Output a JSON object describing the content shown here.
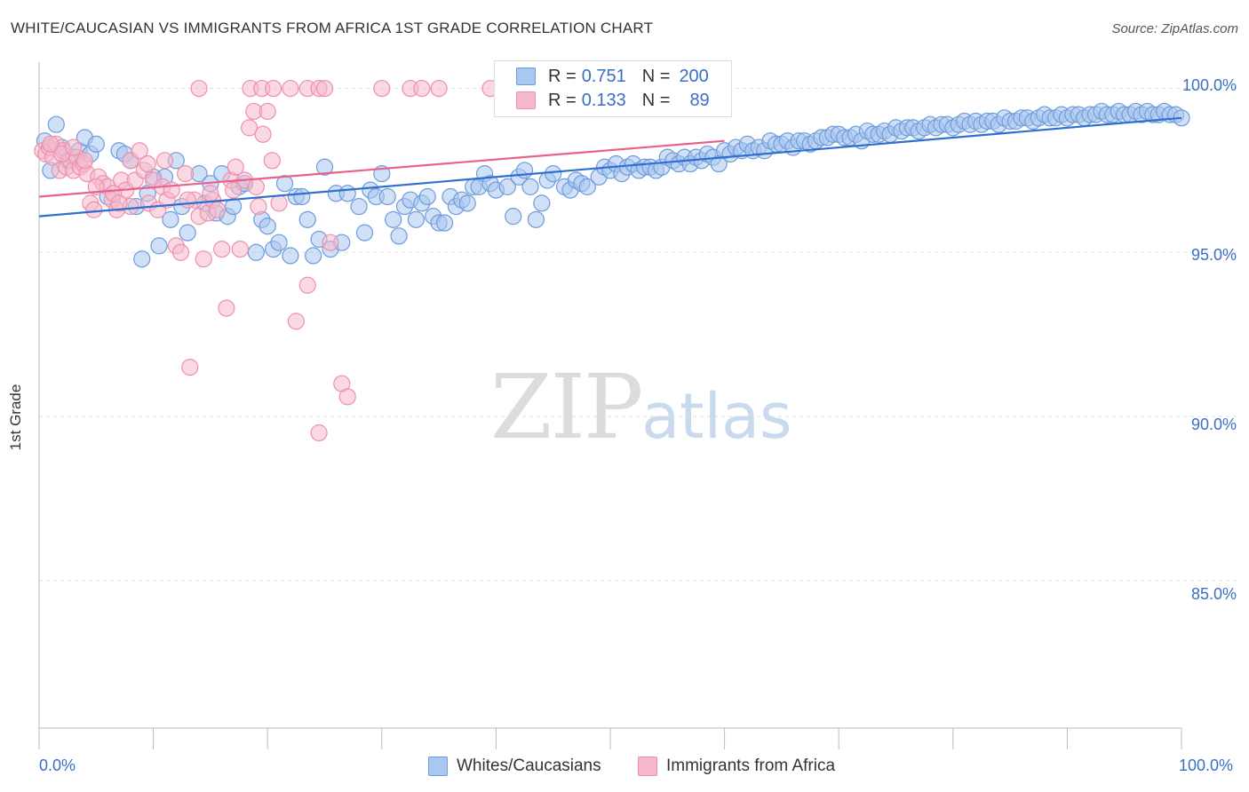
{
  "header": {
    "title": "WHITE/CAUCASIAN VS IMMIGRANTS FROM AFRICA 1ST GRADE CORRELATION CHART",
    "source": "Source: ZipAtlas.com"
  },
  "watermark": {
    "zip": "ZIP",
    "atlas": "atlas"
  },
  "legend_top": {
    "rows": [
      {
        "r_label": "R = ",
        "r_value": "0.751",
        "n_label": "N = ",
        "n_value": "200"
      },
      {
        "r_label": "R = ",
        "r_value": "0.133",
        "n_label": "N = ",
        "n_value": "89"
      }
    ]
  },
  "legend_bottom": [
    "Whites/Caucasians",
    "Immigrants from Africa"
  ],
  "colors": {
    "blue_fill": "#a9c7ef",
    "blue_stroke": "#6d9bdc",
    "blue_line": "#2f6fd0",
    "pink_fill": "#f6b9cc",
    "pink_stroke": "#ee8fae",
    "pink_line": "#e8628c",
    "tick_text": "#3a6fc4",
    "grid": "#dddddd"
  },
  "chart_data": {
    "type": "scatter",
    "title": "WHITE/CAUCASIAN VS IMMIGRANTS FROM AFRICA 1ST GRADE CORRELATION CHART",
    "xlabel": "",
    "ylabel": "1st Grade",
    "x_tick_labels": [
      "0.0%",
      "100.0%"
    ],
    "y_tick_labels": [
      "100.0%",
      "95.0%",
      "90.0%",
      "85.0%"
    ],
    "y_tick_values": [
      100,
      95,
      90,
      85
    ],
    "xlim": [
      0,
      100
    ],
    "ylim": [
      80.5,
      100.8
    ],
    "grid": true,
    "series": [
      {
        "name": "Whites/Caucasians",
        "r": 0.751,
        "n": 200,
        "trend": {
          "x": [
            0,
            100
          ],
          "y": [
            96.1,
            99.1
          ]
        },
        "points": [
          [
            0.5,
            98.4
          ],
          [
            1,
            97.5
          ],
          [
            1.5,
            98.9
          ],
          [
            2,
            98.2
          ],
          [
            2.5,
            97.8
          ],
          [
            3,
            97.9
          ],
          [
            3.5,
            98.1
          ],
          [
            4,
            98.5
          ],
          [
            4.5,
            98.0
          ],
          [
            5,
            98.3
          ],
          [
            6,
            96.7
          ],
          [
            7,
            98.1
          ],
          [
            7.5,
            98.0
          ],
          [
            8,
            97.8
          ],
          [
            8.5,
            96.4
          ],
          [
            9,
            94.8
          ],
          [
            9.5,
            96.8
          ],
          [
            10,
            97.3
          ],
          [
            10.5,
            95.2
          ],
          [
            11,
            97.3
          ],
          [
            11.5,
            96.0
          ],
          [
            12,
            97.8
          ],
          [
            12.5,
            96.4
          ],
          [
            13,
            95.6
          ],
          [
            14,
            97.4
          ],
          [
            14.5,
            96.5
          ],
          [
            15,
            97.1
          ],
          [
            15.5,
            96.2
          ],
          [
            16,
            97.4
          ],
          [
            16.5,
            96.1
          ],
          [
            17,
            96.4
          ],
          [
            17.5,
            97.0
          ],
          [
            18,
            97.1
          ],
          [
            19,
            95.0
          ],
          [
            19.5,
            96.0
          ],
          [
            20,
            95.8
          ],
          [
            20.5,
            95.1
          ],
          [
            21,
            95.3
          ],
          [
            21.5,
            97.1
          ],
          [
            22,
            94.9
          ],
          [
            22.5,
            96.7
          ],
          [
            23,
            96.7
          ],
          [
            23.5,
            96.0
          ],
          [
            24,
            94.9
          ],
          [
            24.5,
            95.4
          ],
          [
            25,
            97.6
          ],
          [
            25.5,
            95.1
          ],
          [
            26,
            96.8
          ],
          [
            26.5,
            95.3
          ],
          [
            27,
            96.8
          ],
          [
            28,
            96.4
          ],
          [
            28.5,
            95.6
          ],
          [
            29,
            96.9
          ],
          [
            29.5,
            96.7
          ],
          [
            30,
            97.4
          ],
          [
            30.5,
            96.7
          ],
          [
            31,
            96.0
          ],
          [
            31.5,
            95.5
          ],
          [
            32,
            96.4
          ],
          [
            32.5,
            96.6
          ],
          [
            33,
            96.0
          ],
          [
            33.5,
            96.5
          ],
          [
            34,
            96.7
          ],
          [
            34.5,
            96.1
          ],
          [
            35,
            95.9
          ],
          [
            35.5,
            95.9
          ],
          [
            36,
            96.7
          ],
          [
            36.5,
            96.4
          ],
          [
            37,
            96.6
          ],
          [
            37.5,
            96.5
          ],
          [
            38,
            97.0
          ],
          [
            38.5,
            97.0
          ],
          [
            39,
            97.4
          ],
          [
            39.5,
            97.1
          ],
          [
            40,
            96.9
          ],
          [
            41,
            97.0
          ],
          [
            41.5,
            96.1
          ],
          [
            42,
            97.3
          ],
          [
            42.5,
            97.5
          ],
          [
            43,
            97.0
          ],
          [
            43.5,
            96.0
          ],
          [
            44,
            96.5
          ],
          [
            44.5,
            97.2
          ],
          [
            45,
            97.4
          ],
          [
            46,
            97.0
          ],
          [
            46.5,
            96.9
          ],
          [
            47,
            97.2
          ],
          [
            47.5,
            97.1
          ],
          [
            48,
            97.0
          ],
          [
            49,
            97.3
          ],
          [
            49.5,
            97.6
          ],
          [
            50,
            97.5
          ],
          [
            50.5,
            97.7
          ],
          [
            51,
            97.4
          ],
          [
            51.5,
            97.6
          ],
          [
            52,
            97.7
          ],
          [
            52.5,
            97.5
          ],
          [
            53,
            97.6
          ],
          [
            53.5,
            97.6
          ],
          [
            54,
            97.5
          ],
          [
            54.5,
            97.6
          ],
          [
            55,
            97.9
          ],
          [
            55.5,
            97.8
          ],
          [
            56,
            97.7
          ],
          [
            56.5,
            97.9
          ],
          [
            57,
            97.7
          ],
          [
            57.5,
            97.9
          ],
          [
            58,
            97.8
          ],
          [
            58.5,
            98.0
          ],
          [
            59,
            97.9
          ],
          [
            59.5,
            97.7
          ],
          [
            60,
            98.1
          ],
          [
            60.5,
            98.0
          ],
          [
            61,
            98.2
          ],
          [
            61.5,
            98.1
          ],
          [
            62,
            98.3
          ],
          [
            62.5,
            98.1
          ],
          [
            63,
            98.2
          ],
          [
            63.5,
            98.1
          ],
          [
            64,
            98.4
          ],
          [
            64.5,
            98.3
          ],
          [
            65,
            98.3
          ],
          [
            65.5,
            98.4
          ],
          [
            66,
            98.2
          ],
          [
            66.5,
            98.4
          ],
          [
            67,
            98.4
          ],
          [
            67.5,
            98.3
          ],
          [
            68,
            98.4
          ],
          [
            68.5,
            98.5
          ],
          [
            69,
            98.5
          ],
          [
            69.5,
            98.6
          ],
          [
            70,
            98.6
          ],
          [
            70.5,
            98.5
          ],
          [
            71,
            98.5
          ],
          [
            71.5,
            98.6
          ],
          [
            72,
            98.4
          ],
          [
            72.5,
            98.7
          ],
          [
            73,
            98.6
          ],
          [
            73.5,
            98.6
          ],
          [
            74,
            98.7
          ],
          [
            74.5,
            98.6
          ],
          [
            75,
            98.8
          ],
          [
            75.5,
            98.7
          ],
          [
            76,
            98.8
          ],
          [
            76.5,
            98.8
          ],
          [
            77,
            98.7
          ],
          [
            77.5,
            98.8
          ],
          [
            78,
            98.9
          ],
          [
            78.5,
            98.8
          ],
          [
            79,
            98.9
          ],
          [
            79.5,
            98.9
          ],
          [
            80,
            98.8
          ],
          [
            80.5,
            98.9
          ],
          [
            81,
            99.0
          ],
          [
            81.5,
            98.9
          ],
          [
            82,
            99.0
          ],
          [
            82.5,
            98.9
          ],
          [
            83,
            99.0
          ],
          [
            83.5,
            99.0
          ],
          [
            84,
            98.9
          ],
          [
            84.5,
            99.1
          ],
          [
            85,
            99.0
          ],
          [
            85.5,
            99.0
          ],
          [
            86,
            99.1
          ],
          [
            86.5,
            99.1
          ],
          [
            87,
            99.0
          ],
          [
            87.5,
            99.1
          ],
          [
            88,
            99.2
          ],
          [
            88.5,
            99.1
          ],
          [
            89,
            99.1
          ],
          [
            89.5,
            99.2
          ],
          [
            90,
            99.1
          ],
          [
            90.5,
            99.2
          ],
          [
            91,
            99.2
          ],
          [
            91.5,
            99.1
          ],
          [
            92,
            99.2
          ],
          [
            92.5,
            99.2
          ],
          [
            93,
            99.3
          ],
          [
            93.5,
            99.2
          ],
          [
            94,
            99.2
          ],
          [
            94.5,
            99.3
          ],
          [
            95,
            99.2
          ],
          [
            95.5,
            99.2
          ],
          [
            96,
            99.3
          ],
          [
            96.5,
            99.2
          ],
          [
            97,
            99.3
          ],
          [
            97.5,
            99.2
          ],
          [
            98,
            99.2
          ],
          [
            98.5,
            99.3
          ],
          [
            99,
            99.2
          ],
          [
            99.5,
            99.2
          ],
          [
            100,
            99.1
          ]
        ]
      },
      {
        "name": "Immigrants from Africa",
        "r": 0.133,
        "n": 89,
        "trend": {
          "x": [
            0,
            60
          ],
          "y": [
            96.7,
            98.4
          ]
        },
        "points": [
          [
            0.3,
            98.1
          ],
          [
            0.6,
            98.0
          ],
          [
            0.9,
            98.2
          ],
          [
            1.2,
            97.9
          ],
          [
            1.5,
            98.3
          ],
          [
            1.8,
            97.5
          ],
          [
            2.1,
            98.1
          ],
          [
            2.4,
            97.6
          ],
          [
            2.7,
            97.8
          ],
          [
            3,
            97.5
          ],
          [
            3.3,
            97.9
          ],
          [
            3.6,
            97.6
          ],
          [
            3.9,
            97.7
          ],
          [
            4.2,
            97.4
          ],
          [
            4.5,
            96.5
          ],
          [
            4.8,
            96.3
          ],
          [
            5.2,
            97.3
          ],
          [
            5.6,
            97.1
          ],
          [
            6,
            97.0
          ],
          [
            6.4,
            96.6
          ],
          [
            6.8,
            96.3
          ],
          [
            7.2,
            97.2
          ],
          [
            7.6,
            96.9
          ],
          [
            8,
            97.8
          ],
          [
            8.4,
            97.2
          ],
          [
            8.8,
            98.1
          ],
          [
            9.2,
            97.5
          ],
          [
            9.6,
            96.5
          ],
          [
            10,
            97.2
          ],
          [
            10.4,
            96.3
          ],
          [
            10.8,
            97.0
          ],
          [
            11.2,
            96.6
          ],
          [
            11.6,
            96.9
          ],
          [
            12,
            95.2
          ],
          [
            12.4,
            95.0
          ],
          [
            12.8,
            97.4
          ],
          [
            13.2,
            91.5
          ],
          [
            13.6,
            96.6
          ],
          [
            14,
            96.1
          ],
          [
            14.4,
            94.8
          ],
          [
            14.8,
            96.2
          ],
          [
            15.2,
            96.6
          ],
          [
            15.6,
            96.3
          ],
          [
            16,
            95.1
          ],
          [
            16.4,
            93.3
          ],
          [
            16.8,
            97.2
          ],
          [
            17.2,
            97.6
          ],
          [
            17.6,
            95.1
          ],
          [
            18,
            97.2
          ],
          [
            18.4,
            98.8
          ],
          [
            18.8,
            99.3
          ],
          [
            19.2,
            96.4
          ],
          [
            19.6,
            98.6
          ],
          [
            20,
            99.3
          ],
          [
            20.4,
            97.8
          ],
          [
            14,
            100.0
          ],
          [
            18.5,
            100.0
          ],
          [
            19.5,
            100.0
          ],
          [
            20.5,
            100.0
          ],
          [
            22,
            100.0
          ],
          [
            23.5,
            100.0
          ],
          [
            24.5,
            100.0
          ],
          [
            25,
            100.0
          ],
          [
            30,
            100.0
          ],
          [
            32.5,
            100.0
          ],
          [
            33.5,
            100.0
          ],
          [
            35,
            100.0
          ],
          [
            39.5,
            100.0
          ],
          [
            22.5,
            92.9
          ],
          [
            23.5,
            94.0
          ],
          [
            24.5,
            89.5
          ],
          [
            25.5,
            95.3
          ],
          [
            26.5,
            91.0
          ],
          [
            27,
            90.6
          ],
          [
            6.5,
            96.8
          ],
          [
            2,
            98.0
          ],
          [
            4,
            97.8
          ],
          [
            8,
            96.4
          ],
          [
            9.5,
            97.7
          ],
          [
            11,
            97.8
          ],
          [
            13,
            96.6
          ],
          [
            15,
            96.8
          ],
          [
            17,
            96.9
          ],
          [
            19,
            97.0
          ],
          [
            21,
            96.5
          ],
          [
            3,
            98.2
          ],
          [
            1,
            98.3
          ],
          [
            5,
            97.0
          ],
          [
            7,
            96.5
          ]
        ]
      }
    ]
  }
}
